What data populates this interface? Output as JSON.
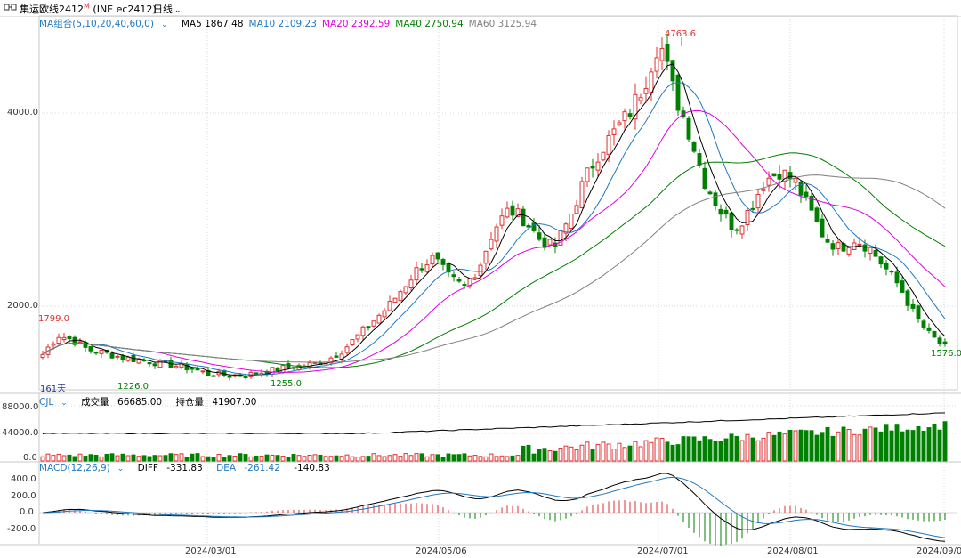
{
  "title_bar": {
    "instrument": "集运欧线2412",
    "superscript": "M",
    "exchange": "(INE  ec2412)",
    "period": "日线"
  },
  "ma_panel": {
    "label": "MA组合(5,10,20,40,60,0)",
    "items": [
      {
        "name": "MA5",
        "value": "1867.48",
        "color": "#000000"
      },
      {
        "name": "MA10",
        "value": "2109.23",
        "color": "#1f78c1"
      },
      {
        "name": "MA20",
        "value": "2392.59",
        "color": "#e000e0"
      },
      {
        "name": "MA40",
        "value": "2750.94",
        "color": "#008000"
      },
      {
        "name": "MA60",
        "value": "3125.94",
        "color": "#808080"
      }
    ],
    "y_ticks": [
      "4000.0",
      "2000.0"
    ],
    "annotations": {
      "high": "4763.6",
      "left_high": "1799.0",
      "low1": "1226.0",
      "low2": "1255.0",
      "last_low": "1576.0",
      "days": "161天"
    }
  },
  "volume_panel": {
    "label": "CJL",
    "volume_label": "成交量",
    "volume_value": "66685.00",
    "oi_label": "持仓量",
    "oi_value": "41907.00",
    "y_ticks": [
      "88000.0",
      "44000.0",
      "0.0"
    ]
  },
  "macd_panel": {
    "label": "MACD(12,26,9)",
    "diff_label": "DIFF",
    "diff_value": "-331.83",
    "dea_label": "DEA",
    "dea_value": "-261.42",
    "macd_value": "-140.83",
    "y_ticks": [
      "400.0",
      "200.0",
      "0.0",
      "-200.0"
    ]
  },
  "x_axis": {
    "labels": [
      "2024/03/01",
      "2024/05/06",
      "2024/07/01",
      "2024/08/01",
      "2024/09/0"
    ]
  },
  "colors": {
    "up": "#e03030",
    "down": "#008000",
    "ma5": "#000000",
    "ma10": "#1f78c1",
    "ma20": "#e000e0",
    "ma40": "#008000",
    "ma60": "#808080",
    "grid": "#d9d9d9",
    "label_red": "#e03030",
    "label_green": "#008000",
    "label_blue": "#1f3a8a"
  },
  "chart_data": {
    "type": "candlestick",
    "anchor_prices": [
      1500,
      1700,
      1650,
      1550,
      1520,
      1480,
      1450,
      1430,
      1400,
      1380,
      1350,
      1300,
      1290,
      1280,
      1300,
      1330,
      1360,
      1380,
      1400,
      1450,
      1550,
      1700,
      1850,
      2000,
      2200,
      2400,
      2500,
      2300,
      2200,
      2400,
      2800,
      3000,
      2900,
      2700,
      2600,
      2900,
      3300,
      3600,
      3800,
      4000,
      4300,
      4763.6,
      4200,
      3800,
      3300,
      3000,
      2800,
      3000,
      3300,
      3400,
      3300,
      3000,
      2700,
      2600,
      2700,
      2600,
      2400,
      2200,
      1900,
      1700,
      1576
    ],
    "ma": {
      "MA5": 1867.48,
      "MA10": 2109.23,
      "MA20": 2392.59,
      "MA40": 2750.94,
      "MA60": 3125.94
    },
    "volume_last": 66685,
    "open_interest_last": 41907,
    "macd_last": {
      "DIFF": -331.83,
      "DEA": -261.42,
      "MACD": -140.83
    }
  }
}
